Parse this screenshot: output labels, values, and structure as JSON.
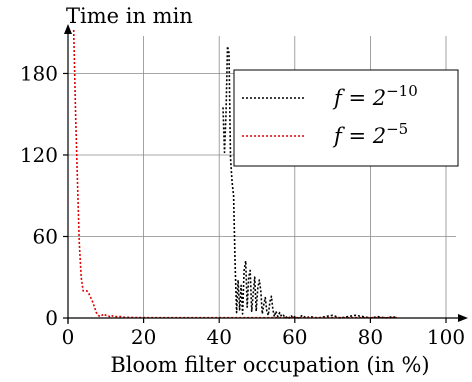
{
  "chart_data": {
    "type": "line",
    "title": "",
    "xlabel": "Bloom filter occupation (in %)",
    "ylabel": "Time in min",
    "xlim": [
      0,
      100
    ],
    "ylim": [
      0,
      212
    ],
    "xticks": [
      0,
      20,
      40,
      60,
      80,
      100
    ],
    "yticks": [
      0,
      60,
      120,
      180
    ],
    "grid": true,
    "legend_position": "top-right",
    "series": [
      {
        "name": "f = 2^-10",
        "name_base": "f = 2",
        "name_exp": "−10",
        "color": "#000000",
        "dash": "dotted",
        "x": [
          41.0,
          41.4,
          41.8,
          42.2,
          42.6,
          43.0,
          43.4,
          43.8,
          44.2,
          44.6,
          45.0,
          45.4,
          45.8,
          46.2,
          46.6,
          47.0,
          47.4,
          47.8,
          48.2,
          48.6,
          49.0,
          49.4,
          49.8,
          50.2,
          50.6,
          51.0,
          51.4,
          51.8,
          52.2,
          52.6,
          53.0,
          53.4,
          53.8,
          54.2,
          54.6,
          55.0,
          55.5,
          56.0,
          56.5,
          57.0,
          57.5,
          58.0,
          58.5,
          59.0,
          59.5,
          60.0,
          61.0,
          62.0,
          63.0,
          64.0,
          66.0,
          68.0,
          70.0,
          72.0,
          74.0,
          76.0,
          78.0,
          80.0,
          82.0,
          84.0,
          86.0,
          87.0
        ],
        "y": [
          155,
          122,
          150,
          200,
          195,
          118,
          100,
          90,
          40,
          4,
          28,
          6,
          24,
          3,
          35,
          42,
          8,
          30,
          35,
          5,
          18,
          30,
          5,
          22,
          28,
          20,
          3,
          10,
          15,
          5,
          2,
          12,
          16,
          6,
          1,
          5,
          1,
          4,
          1,
          2,
          0,
          1,
          0,
          2,
          0,
          1,
          0,
          2,
          0,
          1,
          0,
          1,
          2,
          0,
          1,
          2,
          1,
          0,
          1,
          0,
          1,
          0
        ]
      },
      {
        "name": "f = 2^-5",
        "name_base": "f = 2",
        "name_exp": "−5",
        "color": "#e00000",
        "dash": "dotted",
        "x": [
          1.5,
          2.0,
          2.5,
          3.0,
          3.5,
          4.0,
          4.5,
          5.0,
          5.5,
          6.0,
          6.5,
          7.0,
          7.5,
          8.0,
          8.5,
          9.0,
          9.5,
          10.0,
          10.5,
          11.0,
          11.5,
          12.0,
          13.0,
          14.0,
          15.0,
          16.0,
          18.0,
          20.0,
          25.0,
          30.0,
          40.0,
          50.0,
          60.0,
          70.0,
          80.0,
          87.0
        ],
        "y": [
          212,
          150,
          100,
          55,
          30,
          20,
          20,
          20,
          18,
          15,
          12,
          8,
          4,
          2,
          1,
          2,
          3,
          2,
          2,
          1,
          2,
          1,
          1,
          1,
          0.5,
          0.5,
          0.3,
          0.3,
          0.2,
          0.2,
          0.2,
          0.2,
          0.2,
          0.2,
          0.2,
          0.2
        ]
      }
    ]
  }
}
